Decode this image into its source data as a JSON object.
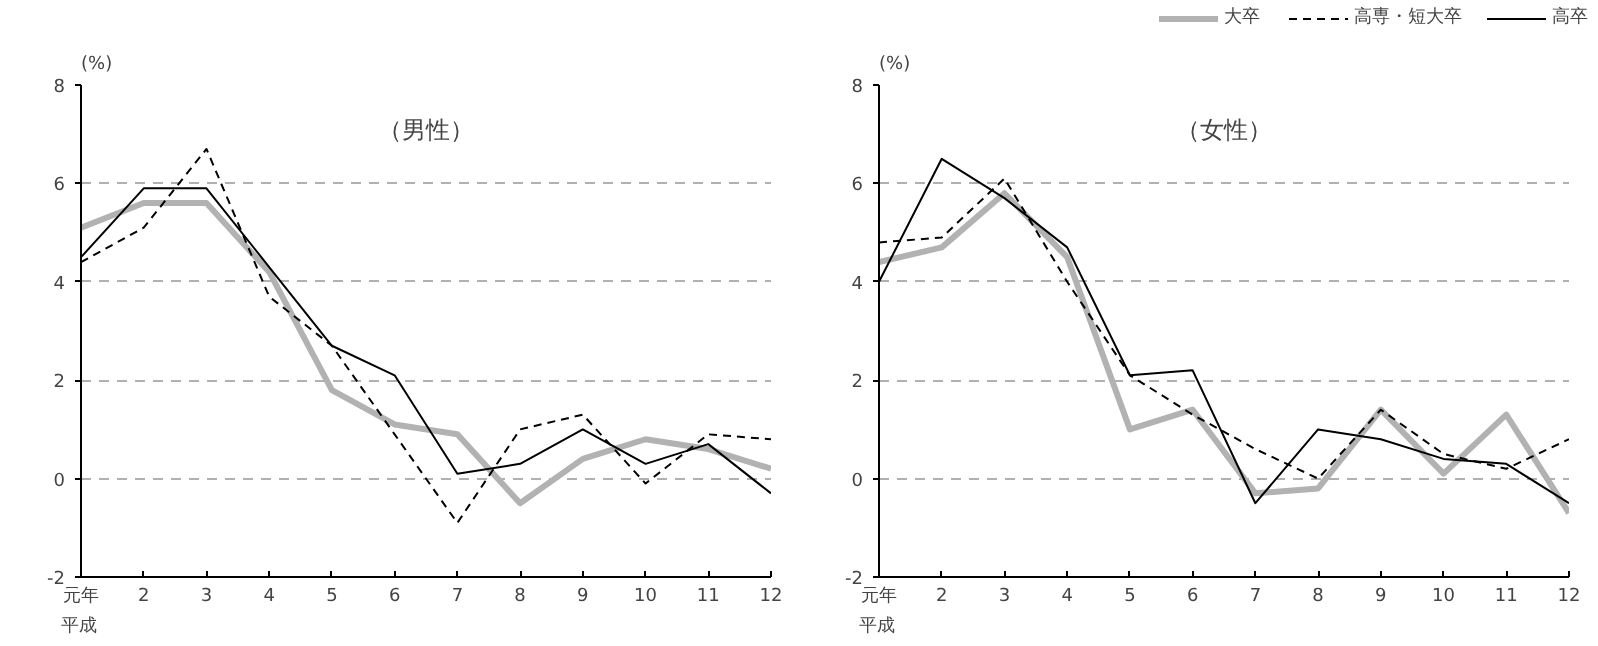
{
  "chart_data": [
    {
      "type": "line",
      "title": "（男性）",
      "ylabel": "(%)",
      "categories": [
        "元年",
        "2",
        "3",
        "4",
        "5",
        "6",
        "7",
        "8",
        "9",
        "10",
        "11",
        "12"
      ],
      "annotations": [
        "平成"
      ],
      "ylim": [
        -2,
        8
      ],
      "yticks": [
        -2,
        0,
        2,
        4,
        6,
        8
      ],
      "grid": "y",
      "marker": "none",
      "series": [
        {
          "color": "#b2b2b2",
          "line_style": "solid",
          "values": [
            5.1,
            5.6,
            5.6,
            4.2,
            1.8,
            1.1,
            0.9,
            -0.5,
            0.4,
            0.8,
            0.6,
            0.2
          ]
        },
        {
          "color": "#000000",
          "line_style": "dashed",
          "values": [
            4.4,
            5.1,
            6.7,
            3.7,
            2.7,
            0.9,
            -0.9,
            1.0,
            1.3,
            -0.1,
            0.9,
            0.8
          ]
        },
        {
          "color": "#000000",
          "line_style": "solid",
          "values": [
            4.5,
            5.9,
            5.9,
            4.3,
            2.7,
            2.1,
            0.1,
            0.3,
            1.0,
            0.3,
            0.7,
            -0.3
          ]
        }
      ]
    },
    {
      "type": "line",
      "title": "（女性）",
      "ylabel": "(%)",
      "categories": [
        "元年",
        "2",
        "3",
        "4",
        "5",
        "6",
        "7",
        "8",
        "9",
        "10",
        "11",
        "12"
      ],
      "annotations": [
        "平成"
      ],
      "ylim": [
        -2,
        8
      ],
      "yticks": [
        -2,
        0,
        2,
        4,
        6,
        8
      ],
      "grid": "y",
      "legend": "top right",
      "marker": "none",
      "series": [
        {
          "name": "大卒",
          "color": "#b2b2b2",
          "line_style": "solid",
          "values": [
            4.4,
            4.7,
            5.8,
            4.5,
            1.0,
            1.4,
            -0.3,
            -0.2,
            1.4,
            0.1,
            1.3,
            -0.7
          ]
        },
        {
          "name": "高専・短大卒",
          "color": "#000000",
          "line_style": "dashed",
          "values": [
            4.8,
            4.9,
            6.1,
            4.0,
            2.1,
            1.3,
            0.6,
            0.0,
            1.4,
            0.5,
            0.2,
            0.8
          ]
        },
        {
          "name": "高卒",
          "color": "#000000",
          "line_style": "solid",
          "values": [
            4.0,
            6.5,
            5.7,
            4.7,
            2.1,
            2.2,
            -0.5,
            1.0,
            0.8,
            0.4,
            0.3,
            -0.5
          ]
        }
      ]
    }
  ]
}
